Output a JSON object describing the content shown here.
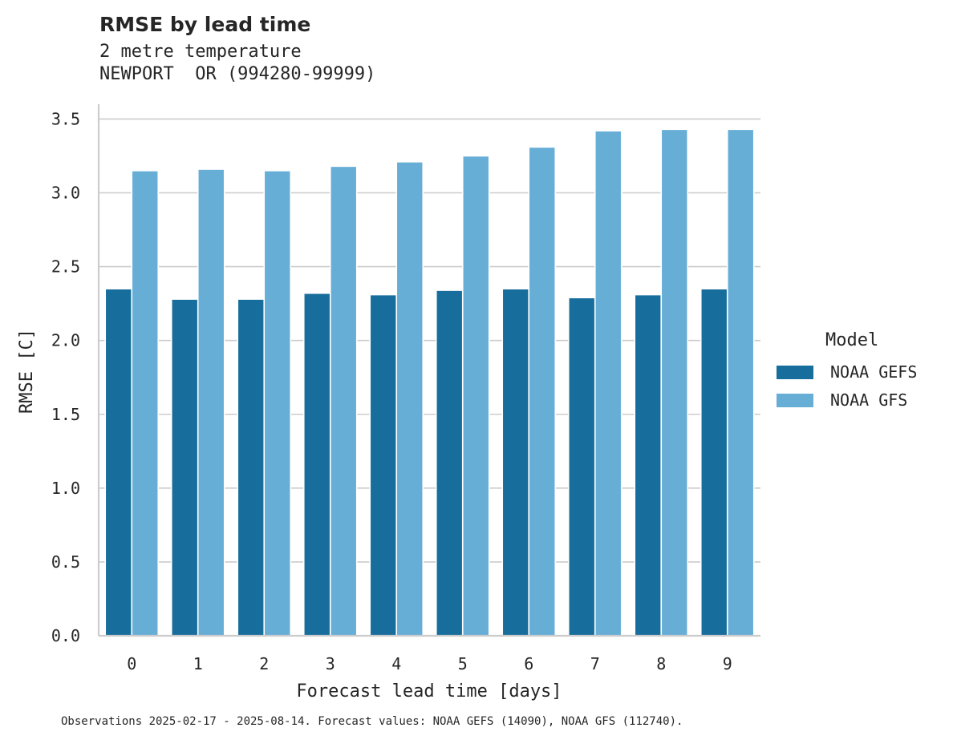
{
  "chart_data": {
    "type": "bar",
    "title": "RMSE by lead time",
    "subtitle_lines": [
      "2 metre temperature",
      "NEWPORT  OR (994280-99999)"
    ],
    "xlabel": "Forecast lead time [days]",
    "ylabel": "RMSE [C]",
    "categories": [
      "0",
      "1",
      "2",
      "3",
      "4",
      "5",
      "6",
      "7",
      "8",
      "9"
    ],
    "ylim": [
      0,
      3.6
    ],
    "yticks": [
      "0.0",
      "0.5",
      "1.0",
      "1.5",
      "2.0",
      "2.5",
      "3.0",
      "3.5"
    ],
    "grid": "horizontal",
    "legend_title": "Model",
    "legend_position": "right",
    "series": [
      {
        "name": "NOAA GEFS",
        "color": "#176d9c",
        "values": [
          2.35,
          2.28,
          2.28,
          2.32,
          2.31,
          2.34,
          2.35,
          2.29,
          2.31,
          2.35
        ]
      },
      {
        "name": "NOAA GFS",
        "color": "#67aed7",
        "values": [
          3.15,
          3.16,
          3.15,
          3.18,
          3.21,
          3.25,
          3.31,
          3.42,
          3.43,
          3.43
        ]
      }
    ],
    "footnote": "Observations 2025-02-17 - 2025-08-14. Forecast values: NOAA GEFS (14090), NOAA GFS (112740)."
  }
}
